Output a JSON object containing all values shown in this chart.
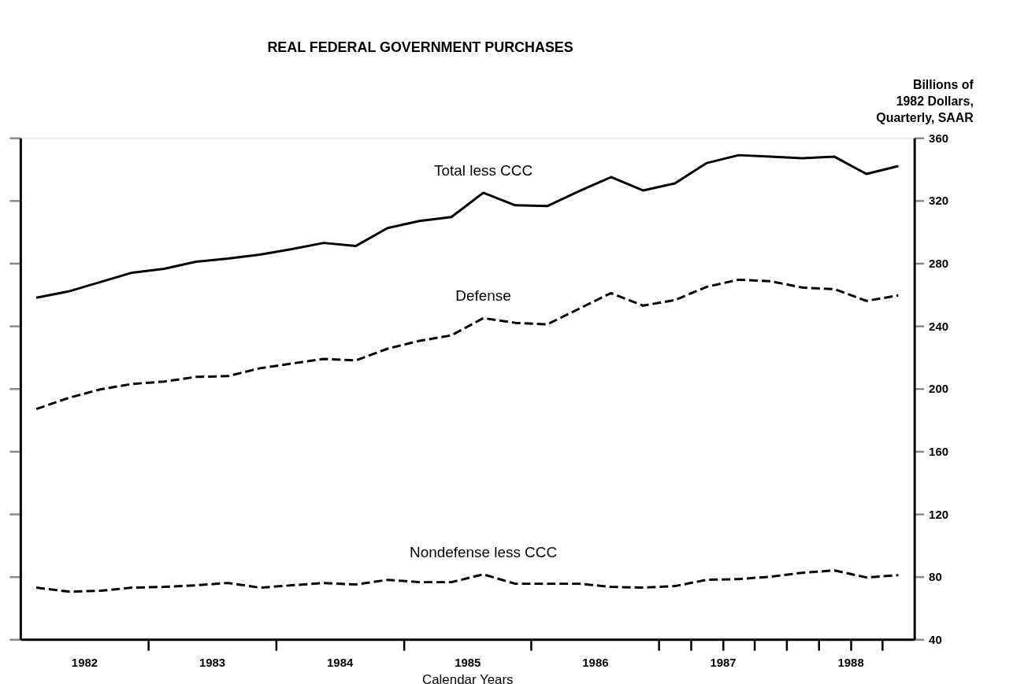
{
  "chart_data": {
    "type": "line",
    "title": "REAL FEDERAL GOVERNMENT PURCHASES",
    "xlabel": "Calendar Years",
    "ylabel": "Billions of\n1982 Dollars,\nQuarterly, SAAR",
    "x": [
      1982.125,
      1982.375,
      1982.625,
      1982.875,
      1983.125,
      1983.375,
      1983.625,
      1983.875,
      1984.125,
      1984.375,
      1984.625,
      1984.875,
      1985.125,
      1985.375,
      1985.625,
      1985.875,
      1986.125,
      1986.375,
      1986.625,
      1986.875,
      1987.125,
      1987.375,
      1987.625,
      1987.875,
      1988.125,
      1988.375,
      1988.625,
      1988.875
    ],
    "series": [
      {
        "name": "Total less CCC",
        "color": "#000000",
        "line_style": "solid",
        "values": [
          258,
          262,
          268,
          274,
          276.5,
          281,
          283,
          285.5,
          289,
          293,
          291,
          302.5,
          307,
          309.5,
          325,
          317,
          316.5,
          326,
          335,
          326.5,
          331,
          344,
          349,
          348,
          347,
          348,
          337,
          342
        ]
      },
      {
        "name": "Defense",
        "color": "#000000",
        "line_style": "dashed",
        "values": [
          187,
          194,
          199.5,
          203,
          204.5,
          207.5,
          208,
          213,
          216,
          219,
          218,
          225.5,
          230.5,
          234,
          245,
          242,
          241,
          251,
          261,
          253,
          256.5,
          265,
          269.5,
          268.5,
          264.5,
          263.5,
          256,
          259.5
        ]
      },
      {
        "name": "Nondefense less CCC",
        "color": "#000000",
        "line_style": "dashed",
        "values": [
          73,
          70.5,
          71,
          73,
          73.5,
          74.5,
          76,
          73,
          74.5,
          76,
          75,
          78,
          76.5,
          76.5,
          81.5,
          75.5,
          75.5,
          75.5,
          73.5,
          73,
          74,
          78,
          78.5,
          80,
          82.5,
          84,
          79.5,
          81
        ]
      }
    ],
    "xlim": [
      1982,
      1989
    ],
    "xticks": [
      {
        "value": 1982.5,
        "label": "1982"
      },
      {
        "value": 1983.5,
        "label": "1983"
      },
      {
        "value": 1984.5,
        "label": "1984"
      },
      {
        "value": 1985.5,
        "label": "1985"
      },
      {
        "value": 1986.5,
        "label": "1986"
      },
      {
        "value": 1987.5,
        "label": "1987"
      },
      {
        "value": 1988.5,
        "label": "1988"
      },
      {
        "value": 1983,
        "label": null
      },
      {
        "value": 1984,
        "label": null
      },
      {
        "value": 1985,
        "label": null
      },
      {
        "value": 1986,
        "label": null
      },
      {
        "value": 1987,
        "label": null
      },
      {
        "value": 1987.25,
        "label": null
      },
      {
        "value": 1987.5,
        "label": null
      },
      {
        "value": 1987.75,
        "label": null
      },
      {
        "value": 1988,
        "label": null
      },
      {
        "value": 1988.25,
        "label": null
      },
      {
        "value": 1988.5,
        "label": null
      },
      {
        "value": 1988.75,
        "label": null
      }
    ],
    "ylim": [
      40,
      360
    ],
    "yticks": [
      40,
      80,
      120,
      160,
      200,
      240,
      280,
      320,
      360
    ],
    "grid": false,
    "marker": "none"
  }
}
